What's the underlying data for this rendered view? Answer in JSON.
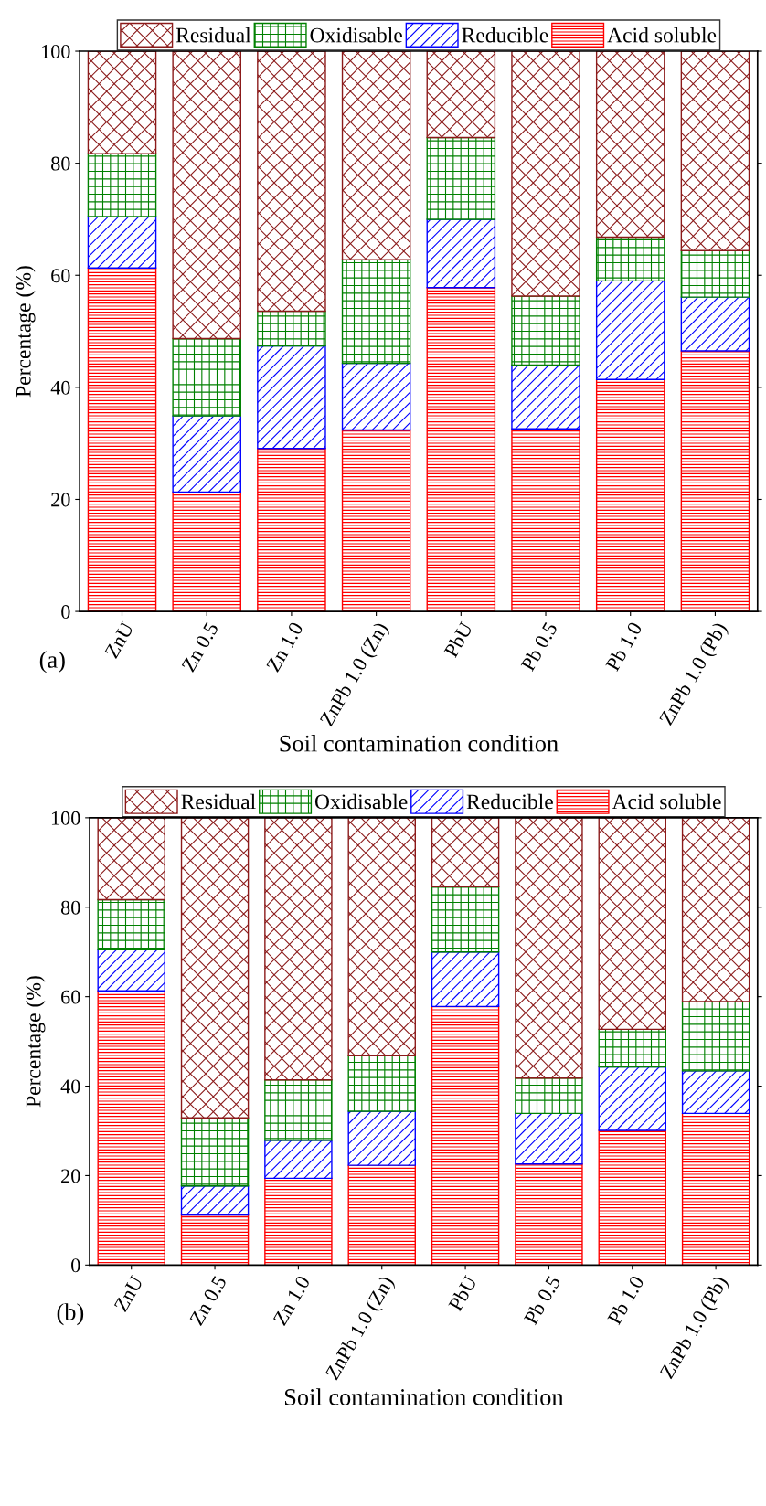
{
  "chart_data": [
    {
      "type": "bar",
      "stacked": true,
      "xlabel": "Soil contamination condition",
      "ylabel": "Percentage (%)",
      "annotations": [
        "(a)"
      ],
      "categories": [
        "ZnU",
        "Zn 0.5",
        "Zn 1.0",
        "ZnPb 1.0 (Zn)",
        "PbU",
        "Pb 0.5",
        "Pb 1.0",
        "ZnPb 1.0 (Pb)"
      ],
      "ylim": [
        0,
        100
      ],
      "yticks": [
        0,
        20,
        40,
        60,
        80,
        100
      ],
      "legend": "top",
      "grid": false,
      "series": [
        {
          "name": "Acid soluble",
          "color": "#ff0000",
          "values": [
            61.3,
            21.3,
            29.1,
            32.4,
            57.8,
            32.6,
            41.4,
            46.5
          ]
        },
        {
          "name": "Reducible",
          "color": "#0000ff",
          "values": [
            9.2,
            13.6,
            18.3,
            11.9,
            12.2,
            11.4,
            17.6,
            9.6
          ]
        },
        {
          "name": "Oxidisable",
          "color": "#008000",
          "values": [
            11.2,
            13.8,
            6.2,
            18.5,
            14.6,
            12.3,
            7.8,
            8.3
          ]
        },
        {
          "name": "Residual",
          "color": "#8b1a1a",
          "values": [
            18.3,
            51.3,
            46.4,
            37.2,
            15.4,
            43.7,
            33.2,
            35.6
          ]
        }
      ]
    },
    {
      "type": "bar",
      "stacked": true,
      "xlabel": "Soil contamination condition",
      "ylabel": "Percentage (%)",
      "annotations": [
        "(b)"
      ],
      "categories": [
        "ZnU",
        "Zn 0.5",
        "Zn 1.0",
        "ZnPb 1.0 (Zn)",
        "PbU",
        "Pb 0.5",
        "Pb 1.0",
        "ZnPb 1.0 (Pb)"
      ],
      "ylim": [
        0,
        100
      ],
      "yticks": [
        0,
        20,
        40,
        60,
        80,
        100
      ],
      "legend": "top",
      "grid": false,
      "series": [
        {
          "name": "Acid soluble",
          "color": "#ff0000",
          "values": [
            61.3,
            11.2,
            19.4,
            22.3,
            57.8,
            22.6,
            30.1,
            33.9
          ]
        },
        {
          "name": "Reducible",
          "color": "#0000ff",
          "values": [
            9.2,
            6.5,
            8.5,
            12.1,
            12.2,
            11.3,
            14.2,
            9.5
          ]
        },
        {
          "name": "Oxidisable",
          "color": "#008000",
          "values": [
            11.2,
            15.2,
            13.5,
            12.4,
            14.6,
            7.9,
            8.4,
            15.5
          ]
        },
        {
          "name": "Residual",
          "color": "#8b1a1a",
          "values": [
            18.3,
            67.1,
            58.6,
            53.2,
            15.4,
            58.2,
            47.3,
            41.1
          ]
        }
      ]
    }
  ]
}
